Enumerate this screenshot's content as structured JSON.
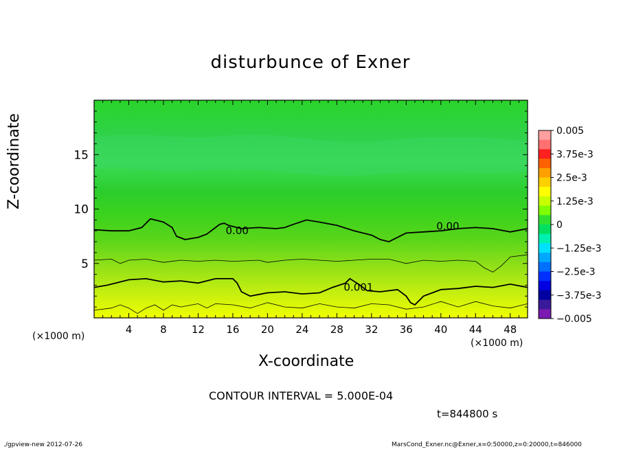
{
  "chart_data": {
    "type": "heatmap",
    "title": "disturbunce of Exner",
    "xlabel": "X-coordinate",
    "ylabel": "Z-coordinate",
    "x_unit_label": "(×1000 m)",
    "xlim": [
      0,
      50
    ],
    "ylim": [
      0,
      20
    ],
    "x_ticks": [
      4,
      8,
      12,
      16,
      20,
      24,
      28,
      32,
      36,
      40,
      44,
      48
    ],
    "y_ticks": [
      5,
      10,
      15
    ],
    "colorbar": {
      "range": [
        -0.005,
        0.005
      ],
      "labels": [
        "0.005",
        "3.75e-3",
        "2.5e-3",
        "1.25e-3",
        "0",
        "−1.25e-3",
        "−2.5e-3",
        "−3.75e-3",
        "−0.005"
      ],
      "colors": [
        "#ff9f9f",
        "#ff7070",
        "#ff2020",
        "#ff6000",
        "#ffa000",
        "#ffd000",
        "#ffff00",
        "#c8ff00",
        "#7fff00",
        "#30e030",
        "#00e060",
        "#00f0b0",
        "#00e0ff",
        "#00a8ff",
        "#0070ff",
        "#0030ff",
        "#0000e0",
        "#0000a0",
        "#3a1a9a",
        "#7a1ab0"
      ]
    },
    "contour_labels": [
      {
        "text": "0.00",
        "x": 16.5,
        "z": 7.7
      },
      {
        "text": "0.00",
        "x": 40.8,
        "z": 8.1
      },
      {
        "text": "0.001",
        "x": 30.5,
        "z": 2.5
      }
    ],
    "contours": [
      {
        "level": 0.0,
        "x": [
          0,
          2,
          4,
          5.5,
          6.5,
          8,
          9,
          9.5,
          10.5,
          12,
          13,
          14,
          14.5,
          15,
          15.5,
          17,
          19,
          21,
          22,
          23,
          24.5,
          26,
          28,
          30,
          32,
          33,
          34,
          35,
          36,
          38,
          40,
          42,
          44,
          46,
          48,
          50
        ],
        "z": [
          8.1,
          8.0,
          8.0,
          8.3,
          9.1,
          8.8,
          8.3,
          7.5,
          7.2,
          7.4,
          7.7,
          8.3,
          8.6,
          8.7,
          8.5,
          8.2,
          8.3,
          8.2,
          8.3,
          8.6,
          9.0,
          8.8,
          8.5,
          8.0,
          7.6,
          7.2,
          7.0,
          7.4,
          7.8,
          7.9,
          8.0,
          8.2,
          8.3,
          8.2,
          7.9,
          8.2
        ]
      },
      {
        "level": 0.0005,
        "x": [
          0,
          2,
          3,
          4,
          6,
          8,
          10,
          12,
          14,
          16,
          19,
          20,
          22,
          24,
          26,
          28,
          30,
          32,
          34,
          36,
          38,
          40,
          42,
          44,
          45,
          46,
          47,
          48,
          50
        ],
        "z": [
          5.3,
          5.4,
          5.0,
          5.3,
          5.4,
          5.1,
          5.3,
          5.2,
          5.3,
          5.2,
          5.3,
          5.1,
          5.3,
          5.4,
          5.3,
          5.2,
          5.3,
          5.4,
          5.4,
          5.0,
          5.3,
          5.2,
          5.3,
          5.2,
          4.6,
          4.2,
          4.8,
          5.6,
          5.8
        ]
      },
      {
        "level": 0.001,
        "x": [
          0,
          1.5,
          2.5,
          4,
          6,
          8,
          10,
          12,
          14,
          16,
          16.5,
          17,
          18,
          20,
          22,
          24,
          26,
          27.5,
          29,
          29.5,
          30.5,
          31.5,
          33,
          35,
          36,
          36.5,
          37,
          38,
          40,
          42,
          44,
          46,
          48,
          50
        ],
        "z": [
          2.8,
          3.0,
          3.2,
          3.5,
          3.6,
          3.3,
          3.4,
          3.2,
          3.6,
          3.6,
          3.2,
          2.4,
          2.0,
          2.3,
          2.4,
          2.2,
          2.3,
          2.8,
          3.2,
          3.6,
          3.1,
          2.5,
          2.4,
          2.6,
          2.0,
          1.4,
          1.2,
          2.0,
          2.6,
          2.7,
          2.9,
          2.8,
          3.1,
          2.8
        ]
      },
      {
        "level": 0.0015,
        "x": [
          0,
          2,
          3,
          4,
          5,
          6,
          7,
          8,
          9,
          10,
          12,
          13,
          14,
          16,
          18,
          20,
          22,
          24,
          26,
          28,
          30,
          32,
          34,
          36,
          38,
          40,
          42,
          44,
          46,
          48,
          50
        ],
        "z": [
          0.7,
          0.9,
          1.2,
          0.9,
          0.4,
          0.9,
          1.2,
          0.7,
          1.2,
          1.0,
          1.3,
          0.9,
          1.3,
          1.2,
          0.9,
          1.4,
          1.0,
          0.9,
          1.3,
          1.0,
          0.9,
          1.3,
          1.2,
          0.8,
          1.0,
          1.5,
          1.0,
          1.5,
          1.1,
          0.9,
          1.3
        ]
      }
    ]
  },
  "contour_interval_label": "CONTOUR INTERVAL = 5.000E-04",
  "time_label": "t=844800 s",
  "footer_left": "./gpview-new 2012-07-26",
  "footer_right": "MarsCond_Exner.nc@Exner,x=0:50000,z=0:20000,t=846000"
}
